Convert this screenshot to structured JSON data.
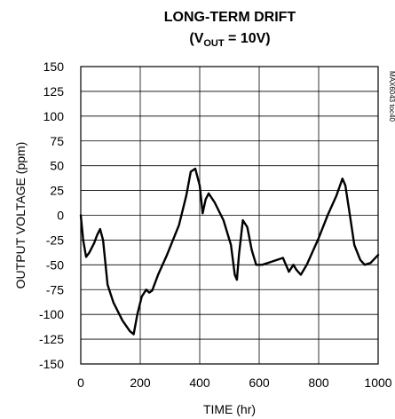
{
  "chart_data": {
    "type": "line",
    "title": "LONG-TERM DRIFT",
    "subtitle_parts": {
      "open": "(V",
      "sub": "OUT",
      "rest": " = 10V)"
    },
    "xlabel": "TIME (hr)",
    "ylabel": "OUTPUT VOLTAGE (ppm)",
    "figure_code": "MAX6043 toc40",
    "xlim": [
      0,
      1000
    ],
    "ylim": [
      -150,
      150
    ],
    "x_ticks": [
      0,
      200,
      400,
      600,
      800,
      1000
    ],
    "y_ticks": [
      150,
      125,
      100,
      75,
      50,
      25,
      0,
      -25,
      -50,
      -75,
      -100,
      -125,
      -150
    ],
    "grid": true,
    "series_color": "#000000",
    "series": [
      {
        "points": [
          [
            0,
            0
          ],
          [
            8,
            -25
          ],
          [
            18,
            -42
          ],
          [
            28,
            -38
          ],
          [
            45,
            -28
          ],
          [
            55,
            -20
          ],
          [
            65,
            -14
          ],
          [
            75,
            -25
          ],
          [
            90,
            -70
          ],
          [
            110,
            -88
          ],
          [
            140,
            -106
          ],
          [
            165,
            -117
          ],
          [
            178,
            -120
          ],
          [
            190,
            -100
          ],
          [
            205,
            -82
          ],
          [
            220,
            -75
          ],
          [
            230,
            -78
          ],
          [
            240,
            -76
          ],
          [
            260,
            -60
          ],
          [
            290,
            -40
          ],
          [
            330,
            -10
          ],
          [
            355,
            20
          ],
          [
            370,
            44
          ],
          [
            385,
            47
          ],
          [
            400,
            30
          ],
          [
            410,
            2
          ],
          [
            420,
            16
          ],
          [
            430,
            22
          ],
          [
            450,
            13
          ],
          [
            480,
            -5
          ],
          [
            505,
            -30
          ],
          [
            518,
            -60
          ],
          [
            525,
            -65
          ],
          [
            532,
            -40
          ],
          [
            545,
            -5
          ],
          [
            560,
            -12
          ],
          [
            575,
            -35
          ],
          [
            590,
            -50
          ],
          [
            610,
            -50
          ],
          [
            640,
            -47
          ],
          [
            680,
            -43
          ],
          [
            690,
            -50
          ],
          [
            700,
            -57
          ],
          [
            715,
            -50
          ],
          [
            725,
            -55
          ],
          [
            740,
            -60
          ],
          [
            760,
            -50
          ],
          [
            800,
            -23
          ],
          [
            830,
            0
          ],
          [
            860,
            20
          ],
          [
            880,
            37
          ],
          [
            890,
            30
          ],
          [
            905,
            0
          ],
          [
            920,
            -30
          ],
          [
            940,
            -45
          ],
          [
            955,
            -50
          ],
          [
            975,
            -48
          ],
          [
            1000,
            -40
          ]
        ]
      }
    ]
  }
}
